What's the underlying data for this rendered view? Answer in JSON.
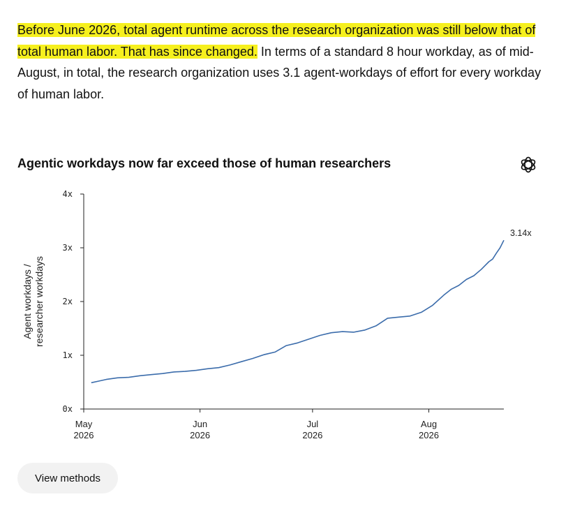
{
  "intro": {
    "highlight": "Before June 2026, total agent runtime across the research organization was still below that of total human labor. That has since changed.",
    "rest": " In terms of a standard 8 hour workday, as of mid-August, in total, the research organization uses 3.1 agent-workdays of effort for every workday of human labor."
  },
  "chart_title": "Agentic workdays now far exceed those of human researchers",
  "logo_icon": "openai-logo-icon",
  "colors": {
    "line": "#3b6cab",
    "highlight": "#f6f01e",
    "button_bg": "#f2f2f2"
  },
  "methods_button": {
    "label": "View methods"
  },
  "chart_data": {
    "type": "line",
    "ylabel_lines": [
      "Agent workdays /",
      "researcher workdays"
    ],
    "xlabel": "",
    "ylim": [
      0,
      4
    ],
    "y_ticks": [
      {
        "value": 0,
        "label": "0x"
      },
      {
        "value": 1,
        "label": "1x"
      },
      {
        "value": 2,
        "label": "2x"
      },
      {
        "value": 3,
        "label": "3x"
      },
      {
        "value": 4,
        "label": "4x"
      }
    ],
    "xlim": [
      "2026-05-01",
      "2026-08-21"
    ],
    "x_ticks": [
      {
        "date": "2026-05-01",
        "label": [
          "May",
          "2026"
        ]
      },
      {
        "date": "2026-06-01",
        "label": [
          "Jun",
          "2026"
        ]
      },
      {
        "date": "2026-07-01",
        "label": [
          "Jul",
          "2026"
        ]
      },
      {
        "date": "2026-08-01",
        "label": [
          "Aug",
          "2026"
        ]
      }
    ],
    "grid": false,
    "end_label": "3.14x",
    "series": [
      {
        "points": [
          [
            "2026-05-03",
            0.49
          ],
          [
            "2026-05-05",
            0.52
          ],
          [
            "2026-05-07",
            0.55
          ],
          [
            "2026-05-10",
            0.58
          ],
          [
            "2026-05-13",
            0.59
          ],
          [
            "2026-05-16",
            0.62
          ],
          [
            "2026-05-19",
            0.64
          ],
          [
            "2026-05-22",
            0.66
          ],
          [
            "2026-05-25",
            0.69
          ],
          [
            "2026-05-28",
            0.7
          ],
          [
            "2026-05-31",
            0.72
          ],
          [
            "2026-06-03",
            0.75
          ],
          [
            "2026-06-06",
            0.77
          ],
          [
            "2026-06-09",
            0.82
          ],
          [
            "2026-06-12",
            0.88
          ],
          [
            "2026-06-15",
            0.94
          ],
          [
            "2026-06-18",
            1.01
          ],
          [
            "2026-06-21",
            1.06
          ],
          [
            "2026-06-24",
            1.18
          ],
          [
            "2026-06-27",
            1.23
          ],
          [
            "2026-06-30",
            1.3
          ],
          [
            "2026-07-03",
            1.37
          ],
          [
            "2026-07-06",
            1.42
          ],
          [
            "2026-07-09",
            1.44
          ],
          [
            "2026-07-12",
            1.43
          ],
          [
            "2026-07-15",
            1.47
          ],
          [
            "2026-07-18",
            1.55
          ],
          [
            "2026-07-21",
            1.69
          ],
          [
            "2026-07-24",
            1.71
          ],
          [
            "2026-07-27",
            1.73
          ],
          [
            "2026-07-30",
            1.8
          ],
          [
            "2026-08-02",
            1.93
          ],
          [
            "2026-08-05",
            2.12
          ],
          [
            "2026-08-07",
            2.23
          ],
          [
            "2026-08-09",
            2.3
          ],
          [
            "2026-08-11",
            2.41
          ],
          [
            "2026-08-13",
            2.48
          ],
          [
            "2026-08-15",
            2.6
          ],
          [
            "2026-08-17",
            2.74
          ],
          [
            "2026-08-18",
            2.79
          ],
          [
            "2026-08-19",
            2.9
          ],
          [
            "2026-08-20",
            3.0
          ],
          [
            "2026-08-21",
            3.14
          ]
        ]
      }
    ]
  }
}
